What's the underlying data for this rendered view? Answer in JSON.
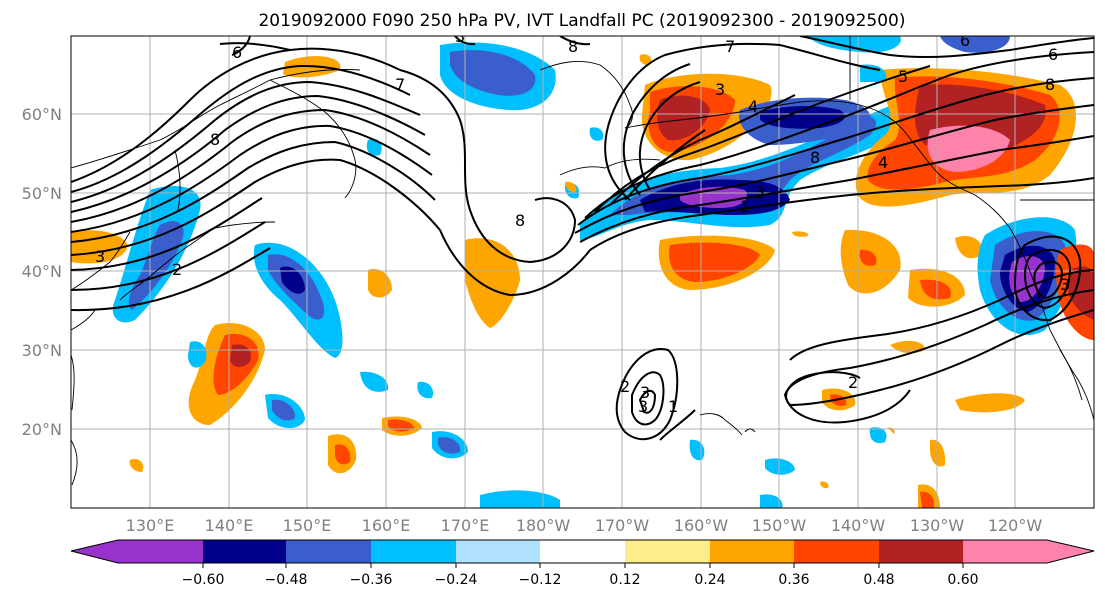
{
  "title": "2019092000 F090 250 hPa PV, IVT Landfall PC (2019092300 - 2019092500)",
  "lat_labels": [
    "20°N",
    "30°N",
    "40°N",
    "50°N",
    "60°N"
  ],
  "lon_labels": [
    "130°E",
    "140°E",
    "150°E",
    "160°E",
    "170°E",
    "180°W",
    "170°W",
    "160°W",
    "150°W",
    "140°W",
    "130°W",
    "120°W"
  ],
  "colorbar": {
    "tick_labels": [
      "−0.60",
      "−0.48",
      "−0.36",
      "−0.24",
      "−0.12",
      "0.12",
      "0.24",
      "0.36",
      "0.48",
      "0.60"
    ],
    "colors": [
      "#9932cc",
      "#00008b",
      "#3a5fcd",
      "#00bfff",
      "#b0e2ff",
      "#ffffff",
      "#ffec8b",
      "#ffa500",
      "#ff4500",
      "#b22222",
      "#ff82ab"
    ]
  },
  "contour_labels": [
    "6",
    "7",
    "8",
    "3",
    "7",
    "6",
    "5",
    "8",
    "3",
    "4",
    "8",
    "3",
    "8",
    "1",
    "3",
    "4",
    "6",
    "8",
    "2",
    "3",
    "2",
    "3",
    "1",
    "2",
    "3"
  ]
}
